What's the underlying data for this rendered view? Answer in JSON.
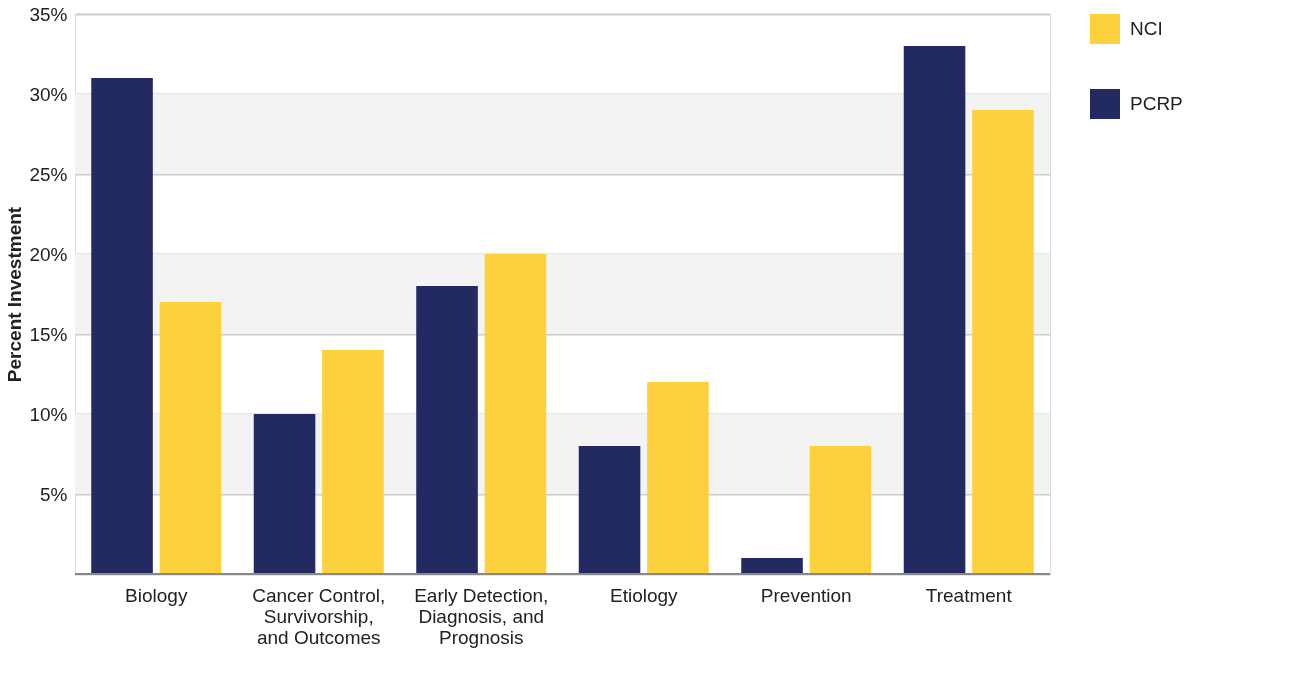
{
  "chart_data": {
    "type": "bar",
    "ylabel": "Percent Investment",
    "categories": [
      "Biology",
      "Cancer Control, Survivorship, and Outcomes",
      "Early Detection, Diagnosis, and Prognosis",
      "Etiology",
      "Prevention",
      "Treatment"
    ],
    "series": [
      {
        "name": "PCRP",
        "color": "#232a62",
        "values": [
          31,
          10,
          18,
          8,
          1,
          33
        ]
      },
      {
        "name": "NCI",
        "color": "#fdd03d",
        "values": [
          17,
          14,
          20,
          12,
          8,
          29
        ]
      }
    ],
    "ylim": [
      0,
      35
    ],
    "yticks": [
      {
        "value": 0,
        "label": null
      },
      {
        "value": 5,
        "label": "5%"
      },
      {
        "value": 10,
        "label": "10%"
      },
      {
        "value": 15,
        "label": "15%"
      },
      {
        "value": 20,
        "label": "20%"
      },
      {
        "value": 25,
        "label": "25%"
      },
      {
        "value": 30,
        "label": "30%"
      },
      {
        "value": 35,
        "label": "35%"
      }
    ],
    "bands": [
      {
        "axis": "y",
        "from": 5,
        "to": 10,
        "color": "#f2f3f2"
      },
      {
        "axis": "y",
        "from": 15,
        "to": 20,
        "color": "#f2f3f2"
      },
      {
        "axis": "y",
        "from": 25,
        "to": 30,
        "color": "#f2f3f2"
      }
    ],
    "grid": "y",
    "legend": "top right"
  }
}
